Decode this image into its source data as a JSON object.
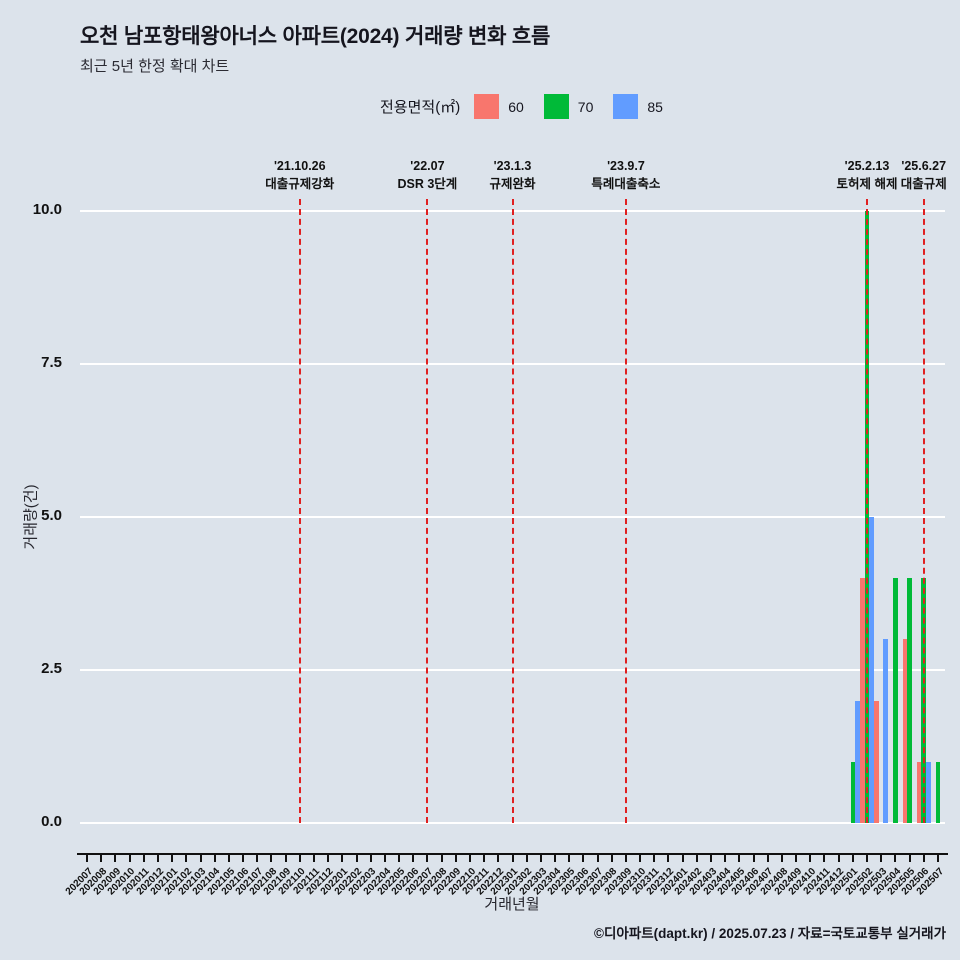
{
  "title": "오천 남포항태왕아너스 아파트(2024) 거래량 변화 흐름",
  "subtitle": "최근 5년 한정 확대 차트",
  "legend": {
    "label": "전용면적(㎡)",
    "items": [
      {
        "label": "60",
        "color": "#F8766D"
      },
      {
        "label": "70",
        "color": "#00BA38"
      },
      {
        "label": "85",
        "color": "#619CFF"
      }
    ]
  },
  "axes": {
    "y_label": "거래량(건)",
    "x_label": "거래년월",
    "y_ticks": [
      "0.0",
      "2.5",
      "5.0",
      "7.5",
      "10.0"
    ]
  },
  "footer": "©디아파트(dapt.kr) / 2025.07.23 / 자료=국토교통부 실거래가",
  "colors": {
    "background": "#dce3eb",
    "grid": "#ffffff",
    "annotation_line": "#e02020"
  },
  "chart_data": {
    "type": "bar",
    "title": "오천 남포항태왕아너스 아파트(2024) 거래량 변화 흐름",
    "subtitle": "최근 5년 한정 확대 차트",
    "xlabel": "거래년월",
    "ylabel": "거래량(건)",
    "ylim": [
      0,
      10
    ],
    "grid": true,
    "legend_position": "top",
    "categories": [
      "202007",
      "202008",
      "202009",
      "202010",
      "202011",
      "202012",
      "202101",
      "202102",
      "202103",
      "202104",
      "202105",
      "202106",
      "202107",
      "202108",
      "202109",
      "202110",
      "202111",
      "202112",
      "202201",
      "202202",
      "202203",
      "202204",
      "202205",
      "202206",
      "202207",
      "202208",
      "202209",
      "202210",
      "202211",
      "202212",
      "202301",
      "202302",
      "202303",
      "202304",
      "202305",
      "202306",
      "202307",
      "202308",
      "202309",
      "202310",
      "202311",
      "202312",
      "202401",
      "202402",
      "202403",
      "202404",
      "202405",
      "202406",
      "202407",
      "202408",
      "202409",
      "202410",
      "202411",
      "202412",
      "202501",
      "202502",
      "202503",
      "202504",
      "202505",
      "202506",
      "202507"
    ],
    "series": [
      {
        "name": "60",
        "color": "#F8766D",
        "values": [
          0,
          0,
          0,
          0,
          0,
          0,
          0,
          0,
          0,
          0,
          0,
          0,
          0,
          0,
          0,
          0,
          0,
          0,
          0,
          0,
          0,
          0,
          0,
          0,
          0,
          0,
          0,
          0,
          0,
          0,
          0,
          0,
          0,
          0,
          0,
          0,
          0,
          0,
          0,
          0,
          0,
          0,
          0,
          0,
          0,
          0,
          0,
          0,
          0,
          0,
          0,
          0,
          0,
          0,
          0,
          4,
          2,
          0,
          3,
          1,
          0
        ]
      },
      {
        "name": "70",
        "color": "#00BA38",
        "values": [
          0,
          0,
          0,
          0,
          0,
          0,
          0,
          0,
          0,
          0,
          0,
          0,
          0,
          0,
          0,
          0,
          0,
          0,
          0,
          0,
          0,
          0,
          0,
          0,
          0,
          0,
          0,
          0,
          0,
          0,
          0,
          0,
          0,
          0,
          0,
          0,
          0,
          0,
          0,
          0,
          0,
          0,
          0,
          0,
          0,
          0,
          0,
          0,
          0,
          0,
          0,
          0,
          0,
          0,
          1,
          10,
          0,
          4,
          4,
          4,
          1
        ]
      },
      {
        "name": "85",
        "color": "#619CFF",
        "values": [
          0,
          0,
          0,
          0,
          0,
          0,
          0,
          0,
          0,
          0,
          0,
          0,
          0,
          0,
          0,
          0,
          0,
          0,
          0,
          0,
          0,
          0,
          0,
          0,
          0,
          0,
          0,
          0,
          0,
          0,
          0,
          0,
          0,
          0,
          0,
          0,
          0,
          0,
          0,
          0,
          0,
          0,
          0,
          0,
          0,
          0,
          0,
          0,
          0,
          0,
          0,
          0,
          0,
          0,
          2,
          5,
          3,
          0,
          0,
          1,
          0
        ]
      }
    ],
    "annotations": [
      {
        "month": "202110",
        "date": "'21.10.26",
        "label": "대출규제강화"
      },
      {
        "month": "202207",
        "date": "'22.07",
        "label": "DSR 3단계"
      },
      {
        "month": "202301",
        "date": "'23.1.3",
        "label": "규제완화"
      },
      {
        "month": "202309",
        "date": "'23.9.7",
        "label": "특례대출축소"
      },
      {
        "month": "202502",
        "date": "'25.2.13",
        "label": "토허제 해제"
      },
      {
        "month": "202506",
        "date": "'25.6.27",
        "label": "대출규제"
      }
    ]
  }
}
